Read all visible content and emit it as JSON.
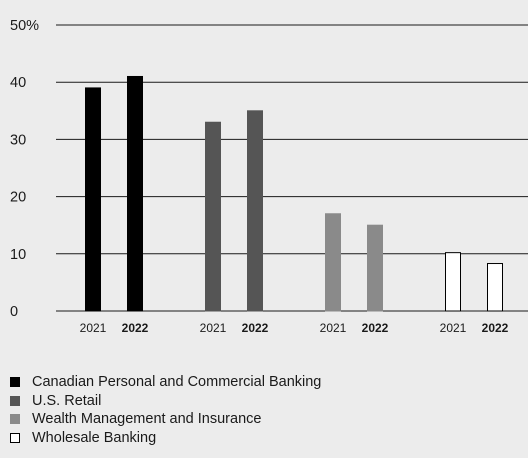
{
  "chart_data": {
    "type": "bar",
    "title": "",
    "xlabel": "",
    "ylabel": "",
    "ylim": [
      0,
      50
    ],
    "yticks": [
      "0",
      "10",
      "20",
      "30",
      "40",
      "50%"
    ],
    "grid": true,
    "legend_position": "bottom-left",
    "groups": [
      {
        "name": "Canadian Personal and Commercial Banking",
        "color": "#000000",
        "stroke": "#000000",
        "bars": [
          {
            "year": "2021",
            "value": 39,
            "bold": false
          },
          {
            "year": "2022",
            "value": 41,
            "bold": true
          }
        ]
      },
      {
        "name": "U.S. Retail",
        "color": "#555555",
        "stroke": "#555555",
        "bars": [
          {
            "year": "2021",
            "value": 33,
            "bold": false
          },
          {
            "year": "2022",
            "value": 35,
            "bold": true
          }
        ]
      },
      {
        "name": "Wealth Management and Insurance",
        "color": "#8a8a8a",
        "stroke": "#8a8a8a",
        "bars": [
          {
            "year": "2021",
            "value": 17,
            "bold": false
          },
          {
            "year": "2022",
            "value": 15,
            "bold": true
          }
        ]
      },
      {
        "name": "Wholesale Banking",
        "color": "#ffffff",
        "stroke": "#000000",
        "bars": [
          {
            "year": "2021",
            "value": 10.2,
            "bold": false
          },
          {
            "year": "2022",
            "value": 8.3,
            "bold": true
          }
        ]
      }
    ]
  }
}
